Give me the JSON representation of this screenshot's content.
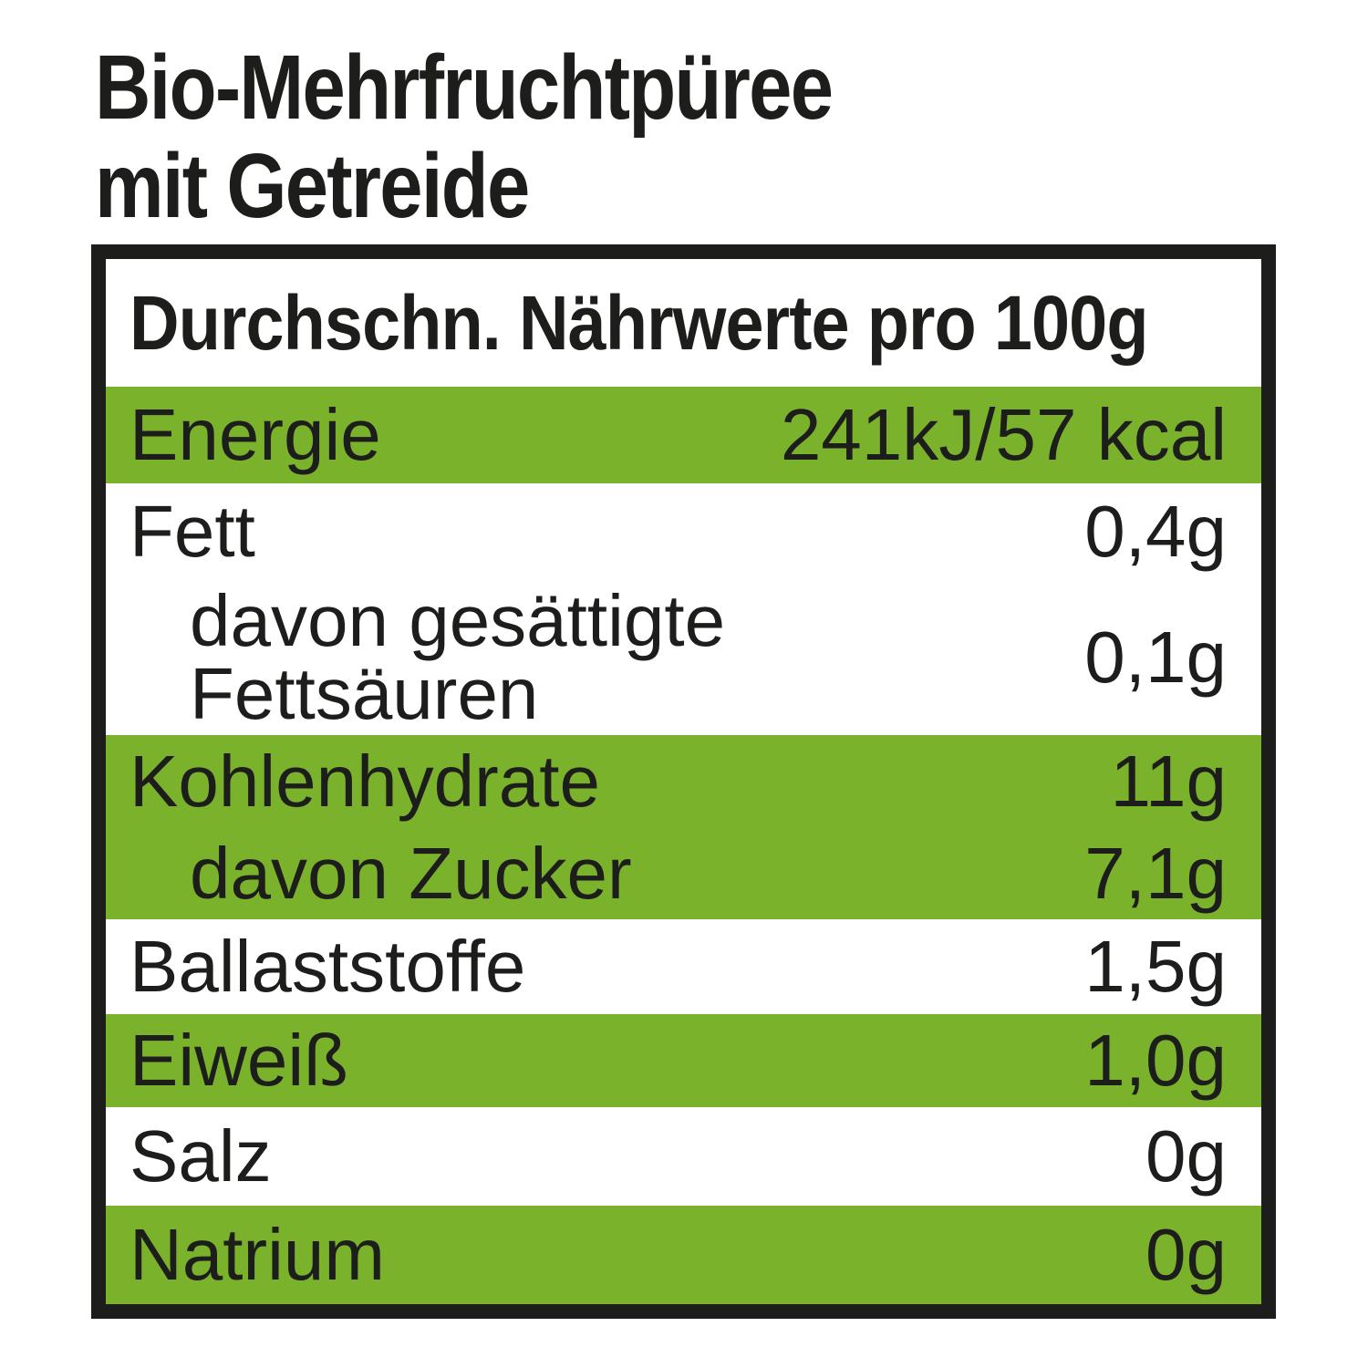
{
  "title": {
    "line1": "Bio-Mehrfruchtpüree",
    "line2": "mit Getreide"
  },
  "table": {
    "header": "Durchschn. Nährwerte pro 100g",
    "rows": [
      {
        "label": "Energie",
        "value": "241kJ/57 kcal",
        "highlighted": true,
        "indented": false
      },
      {
        "label": "Fett",
        "value": "0,4g",
        "highlighted": false,
        "indented": false
      },
      {
        "label": "davon gesättigte Fettsäuren",
        "value": "0,1g",
        "highlighted": false,
        "indented": true
      },
      {
        "label": "Kohlenhydrate",
        "value": "11g",
        "highlighted": true,
        "indented": false
      },
      {
        "label": "davon Zucker",
        "value": "7,1g",
        "highlighted": true,
        "indented": true
      },
      {
        "label": "Ballaststoffe",
        "value": "1,5g",
        "highlighted": false,
        "indented": false
      },
      {
        "label": "Eiweiß",
        "value": "1,0g",
        "highlighted": true,
        "indented": false
      },
      {
        "label": "Salz",
        "value": "0g",
        "highlighted": false,
        "indented": false
      },
      {
        "label": "Natrium",
        "value": "0g",
        "highlighted": true,
        "indented": false
      }
    ]
  },
  "colors": {
    "row_highlight_green": "#7ab22c",
    "text_black": "#1d1d1b",
    "border_black": "#1d1d1b",
    "background_white": "#ffffff"
  }
}
